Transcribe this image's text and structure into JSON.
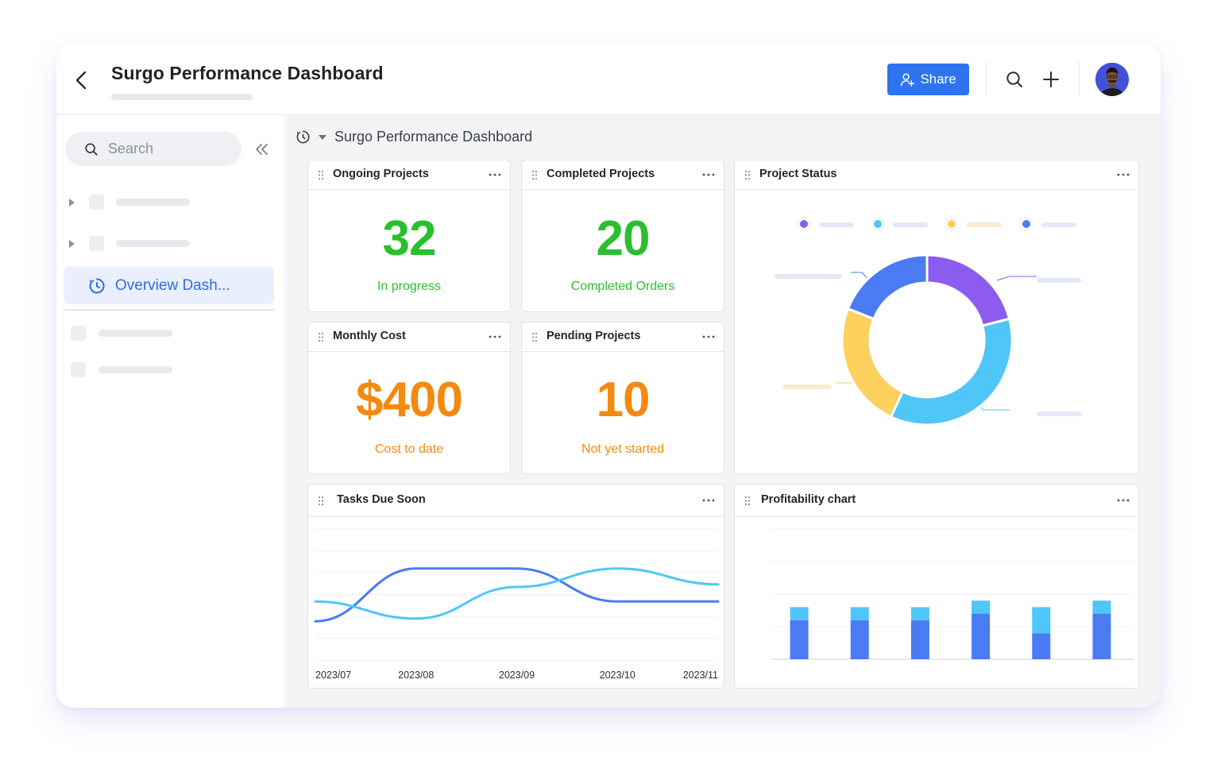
{
  "header": {
    "title": "Surgo Performance Dashboard",
    "share_label": "Share"
  },
  "sidebar": {
    "search_placeholder": "Search",
    "active_item_label": "Overview Dash..."
  },
  "breadcrumb": {
    "title": "Surgo Performance Dashboard"
  },
  "cards": {
    "ongoing": {
      "title": "Ongoing Projects",
      "value": "32",
      "caption": "In progress"
    },
    "completed": {
      "title": "Completed Projects",
      "value": "20",
      "caption": "Completed Orders"
    },
    "monthly_cost": {
      "title": "Monthly Cost",
      "value": "$400",
      "caption": "Cost to date"
    },
    "pending": {
      "title": "Pending Projects",
      "value": "10",
      "caption": "Not yet started"
    },
    "project_status": {
      "title": "Project Status"
    },
    "tasks_due": {
      "title": "Tasks Due Soon"
    },
    "profitability": {
      "title": "Profitability chart"
    }
  },
  "colors": {
    "accent": "#2d74f0",
    "success": "#2bbf2e",
    "warning": "#f5890f",
    "purple": "#8c5cf0",
    "cyan": "#4fc6f7",
    "yellow": "#fdd15e",
    "blue": "#4a7bf2"
  },
  "chart_data": [
    {
      "type": "pie",
      "title": "Project Status",
      "donut": true,
      "slices": [
        {
          "value": 0.21,
          "color": "#8c5cf0"
        },
        {
          "value": 0.36,
          "color": "#4fc6f7"
        },
        {
          "value": 0.24,
          "color": "#fdd15e"
        },
        {
          "value": 0.19,
          "color": "#4a7bf2"
        }
      ]
    },
    {
      "type": "line",
      "title": "Tasks Due Soon",
      "categories": [
        "2023/07",
        "2023/08",
        "2023/09",
        "2023/10",
        "2023/11"
      ],
      "ylim": [
        0,
        10
      ],
      "series": [
        {
          "color": "#4a7bf2",
          "values": [
            3.0,
            7.0,
            7.0,
            4.5,
            4.5
          ]
        },
        {
          "color": "#4fc6f7",
          "values": [
            4.5,
            3.2,
            5.6,
            7.0,
            5.8
          ]
        }
      ]
    },
    {
      "type": "bar",
      "title": "Profitability chart",
      "stacked": true,
      "ylim": [
        0,
        10
      ],
      "grid": true,
      "series": [
        {
          "color": "#4a7bf2",
          "values": [
            3.0,
            3.0,
            3.0,
            3.5,
            2.0,
            3.5
          ]
        },
        {
          "color": "#4fc6f7",
          "values": [
            1.0,
            1.0,
            1.0,
            1.0,
            2.0,
            1.0
          ]
        }
      ]
    }
  ]
}
